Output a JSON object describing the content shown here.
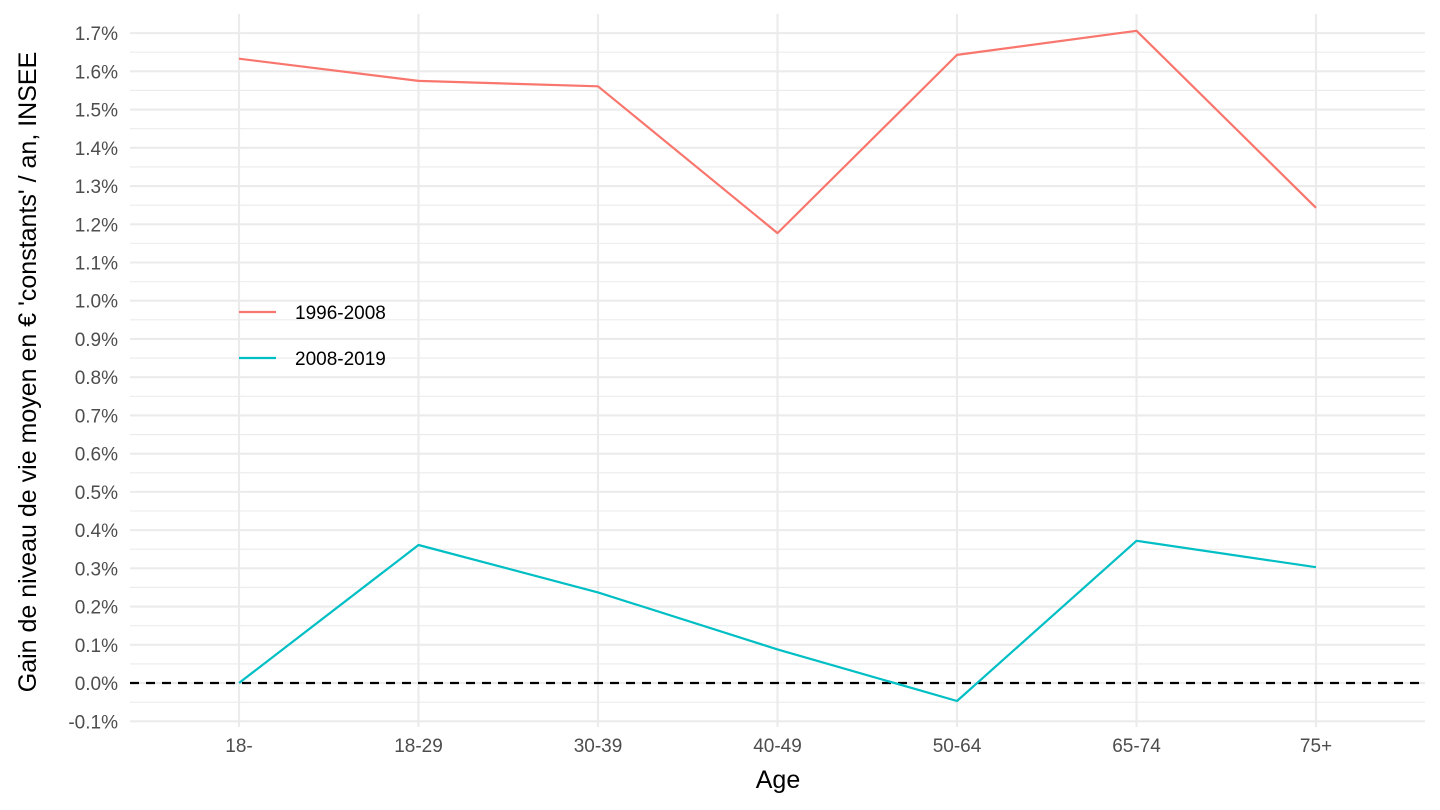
{
  "chart_data": {
    "type": "line",
    "title": "",
    "xlabel": "Age",
    "ylabel": "Gain de niveau de vie moyen en € 'constants' / an, INSEE",
    "categories": [
      "18-",
      "18-29",
      "30-39",
      "40-49",
      "50-64",
      "65-74",
      "75+"
    ],
    "ylim": [
      -0.115,
      1.75
    ],
    "yticks": [
      -0.1,
      0.0,
      0.1,
      0.2,
      0.3,
      0.4,
      0.5,
      0.6,
      0.7,
      0.8,
      0.9,
      1.0,
      1.1,
      1.2,
      1.3,
      1.4,
      1.5,
      1.6,
      1.7
    ],
    "ytick_labels": [
      "-0.1%",
      "0.0%",
      "0.1%",
      "0.2%",
      "0.3%",
      "0.4%",
      "0.5%",
      "0.6%",
      "0.7%",
      "0.8%",
      "0.9%",
      "1.0%",
      "1.1%",
      "1.2%",
      "1.3%",
      "1.4%",
      "1.5%",
      "1.6%",
      "1.7%"
    ],
    "grid": true,
    "reference_line": {
      "y": 0.0,
      "style": "dashed",
      "color": "#000000"
    },
    "legend_position": "inside-left",
    "series": [
      {
        "name": "1996-2008",
        "color": "#F8766D",
        "values": [
          1.633,
          1.575,
          1.561,
          1.177,
          1.643,
          1.706,
          1.243
        ]
      },
      {
        "name": "2008-2019",
        "color": "#00BFC4",
        "values": [
          0.0,
          0.361,
          0.237,
          0.088,
          -0.047,
          0.372,
          0.303
        ]
      }
    ]
  }
}
